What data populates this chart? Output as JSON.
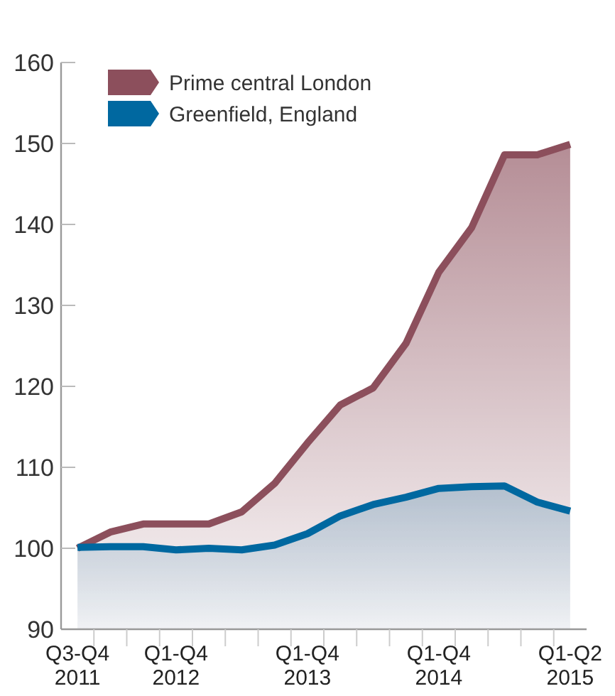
{
  "chart_data": {
    "type": "area",
    "categories": [
      "Q3-Q4\n2011",
      null,
      null,
      "Q1-Q4\n2012",
      null,
      null,
      null,
      "Q1-Q4\n2013",
      null,
      null,
      null,
      "Q1-Q4\n2014",
      null,
      null,
      null,
      "Q1-Q2\n2015"
    ],
    "series": [
      {
        "name": "Prime central London",
        "color": "#8c4f5c",
        "values": [
          100,
          102,
          103,
          103,
          103,
          104.5,
          108,
          113,
          117.7,
          119.8,
          125.3,
          134.1,
          139.6,
          148.6,
          148.6,
          149.9
        ]
      },
      {
        "name": "Greenfield, England",
        "color": "#0068a0",
        "values": [
          100.1,
          100.2,
          100.2,
          99.8,
          100,
          99.8,
          100.4,
          101.8,
          104,
          105.4,
          106.3,
          107.4,
          107.6,
          107.7,
          105.7,
          104.6
        ]
      }
    ],
    "ylim": [
      90,
      160
    ],
    "yticks": [
      90,
      100,
      110,
      120,
      130,
      140,
      150,
      160
    ],
    "grid": false,
    "legend": "top left",
    "line_style": "solid"
  }
}
